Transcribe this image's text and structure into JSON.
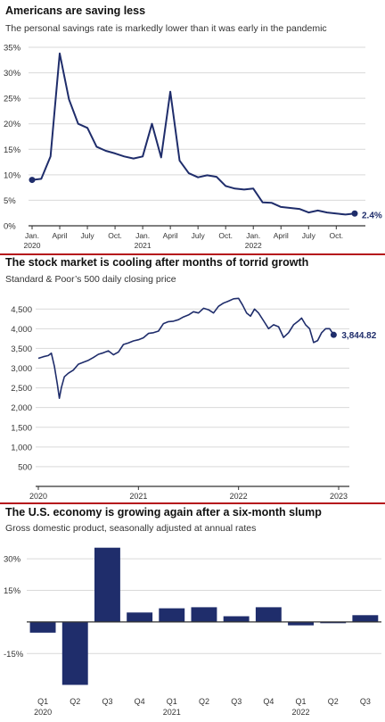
{
  "colors": {
    "navy": "#1f2d6b",
    "divider": "#b5161c",
    "grid": "#d9d9d9",
    "axis": "#333333",
    "text": "#333333"
  },
  "chart_data": [
    {
      "type": "line",
      "title": "Americans are saving less",
      "subtitle": "The personal savings rate is markedly lower than it was early in the pandemic",
      "xlabel": "",
      "ylabel": "",
      "ylim": [
        0,
        35
      ],
      "y_ticks": [
        "0%",
        "5%",
        "10%",
        "15%",
        "20%",
        "25%",
        "30%",
        "35%"
      ],
      "y_tick_values": [
        0,
        5,
        10,
        15,
        20,
        25,
        30,
        35
      ],
      "x_ticks": [
        {
          "line1": "Jan.",
          "line2": "2020",
          "x": 0
        },
        {
          "line1": "April",
          "line2": "",
          "x": 3
        },
        {
          "line1": "July",
          "line2": "",
          "x": 6
        },
        {
          "line1": "Oct.",
          "line2": "",
          "x": 9
        },
        {
          "line1": "Jan.",
          "line2": "2021",
          "x": 12
        },
        {
          "line1": "April",
          "line2": "",
          "x": 15
        },
        {
          "line1": "July",
          "line2": "",
          "x": 18
        },
        {
          "line1": "Oct.",
          "line2": "",
          "x": 21
        },
        {
          "line1": "Jan.",
          "line2": "2022",
          "x": 24
        },
        {
          "line1": "April",
          "line2": "",
          "x": 27
        },
        {
          "line1": "July",
          "line2": "",
          "x": 30
        },
        {
          "line1": "Oct.",
          "line2": "",
          "x": 33
        }
      ],
      "x": [
        0,
        1,
        2,
        3,
        4,
        5,
        6,
        7,
        8,
        9,
        10,
        11,
        12,
        13,
        14,
        15,
        16,
        17,
        18,
        19,
        20,
        21,
        22,
        23,
        24,
        25,
        26,
        27,
        28,
        29,
        30,
        31,
        32,
        33,
        34,
        35
      ],
      "y": [
        9.0,
        9.2,
        13.6,
        33.8,
        24.8,
        20.0,
        19.2,
        15.5,
        14.7,
        14.2,
        13.6,
        13.2,
        13.6,
        20.0,
        13.4,
        26.3,
        12.8,
        10.3,
        9.5,
        9.9,
        9.6,
        7.8,
        7.3,
        7.1,
        7.3,
        4.6,
        4.5,
        3.7,
        3.5,
        3.3,
        2.6,
        3.0,
        2.6,
        2.4,
        2.2,
        2.4
      ],
      "end_label": "2.4%"
    },
    {
      "type": "line",
      "title": "The stock market is cooling after months of torrid growth",
      "subtitle": "Standard & Poor’s 500 daily closing price",
      "xlabel": "",
      "ylabel": "",
      "ylim": [
        0,
        4800
      ],
      "y_ticks": [
        "500",
        "1,000",
        "1,500",
        "2,000",
        "2,500",
        "3,000",
        "3,500",
        "4,000",
        "4,500"
      ],
      "y_tick_values": [
        500,
        1000,
        1500,
        2000,
        2500,
        3000,
        3500,
        4000,
        4500
      ],
      "x_ticks": [
        {
          "label": "2020",
          "x": 2020
        },
        {
          "label": "2021",
          "x": 2021
        },
        {
          "label": "2022",
          "x": 2022
        },
        {
          "label": "2023",
          "x": 2023
        }
      ],
      "x": [
        2020.0,
        2020.05,
        2020.1,
        2020.13,
        2020.16,
        2020.19,
        2020.21,
        2020.23,
        2020.26,
        2020.3,
        2020.35,
        2020.4,
        2020.45,
        2020.5,
        2020.55,
        2020.6,
        2020.65,
        2020.7,
        2020.75,
        2020.8,
        2020.85,
        2020.9,
        2020.95,
        2021.0,
        2021.05,
        2021.1,
        2021.15,
        2021.2,
        2021.25,
        2021.3,
        2021.35,
        2021.4,
        2021.45,
        2021.5,
        2021.55,
        2021.6,
        2021.65,
        2021.7,
        2021.75,
        2021.8,
        2021.85,
        2021.9,
        2021.95,
        2022.0,
        2022.04,
        2022.08,
        2022.12,
        2022.16,
        2022.2,
        2022.25,
        2022.3,
        2022.35,
        2022.4,
        2022.45,
        2022.5,
        2022.55,
        2022.6,
        2022.63,
        2022.67,
        2022.71,
        2022.75,
        2022.79,
        2022.83,
        2022.87,
        2022.91,
        2022.95
      ],
      "y": [
        3250,
        3290,
        3320,
        3380,
        3050,
        2600,
        2237,
        2500,
        2780,
        2870,
        2950,
        3100,
        3150,
        3200,
        3270,
        3350,
        3390,
        3440,
        3340,
        3410,
        3600,
        3640,
        3690,
        3720,
        3770,
        3880,
        3900,
        3940,
        4130,
        4180,
        4190,
        4230,
        4300,
        4350,
        4430,
        4400,
        4520,
        4480,
        4400,
        4570,
        4650,
        4700,
        4760,
        4770,
        4600,
        4400,
        4320,
        4500,
        4400,
        4200,
        4000,
        4100,
        4050,
        3780,
        3900,
        4100,
        4200,
        4270,
        4100,
        4000,
        3650,
        3700,
        3900,
        4000,
        4000,
        3845
      ],
      "end_label": "3,844.82"
    },
    {
      "type": "bar",
      "title": "The U.S. economy is growing again after a six-month slump",
      "subtitle": "Gross domestic product, seasonally adjusted at annual rates",
      "xlabel": "",
      "ylabel": "",
      "ylim": [
        -31,
        36
      ],
      "y_ticks": [
        "-15%",
        "15%",
        "30%"
      ],
      "y_tick_values": [
        -15,
        15,
        30
      ],
      "categories": [
        "Q1",
        "Q2",
        "Q3",
        "Q4",
        "Q1",
        "Q2",
        "Q3",
        "Q4",
        "Q1",
        "Q2",
        "Q3"
      ],
      "year_labels": [
        {
          "label": "2020",
          "index": 0
        },
        {
          "label": "2021",
          "index": 4
        },
        {
          "label": "2022",
          "index": 8
        }
      ],
      "values": [
        -5.1,
        -29.9,
        35.3,
        4.5,
        6.5,
        7.0,
        2.7,
        7.0,
        -1.6,
        -0.6,
        3.2
      ]
    }
  ]
}
